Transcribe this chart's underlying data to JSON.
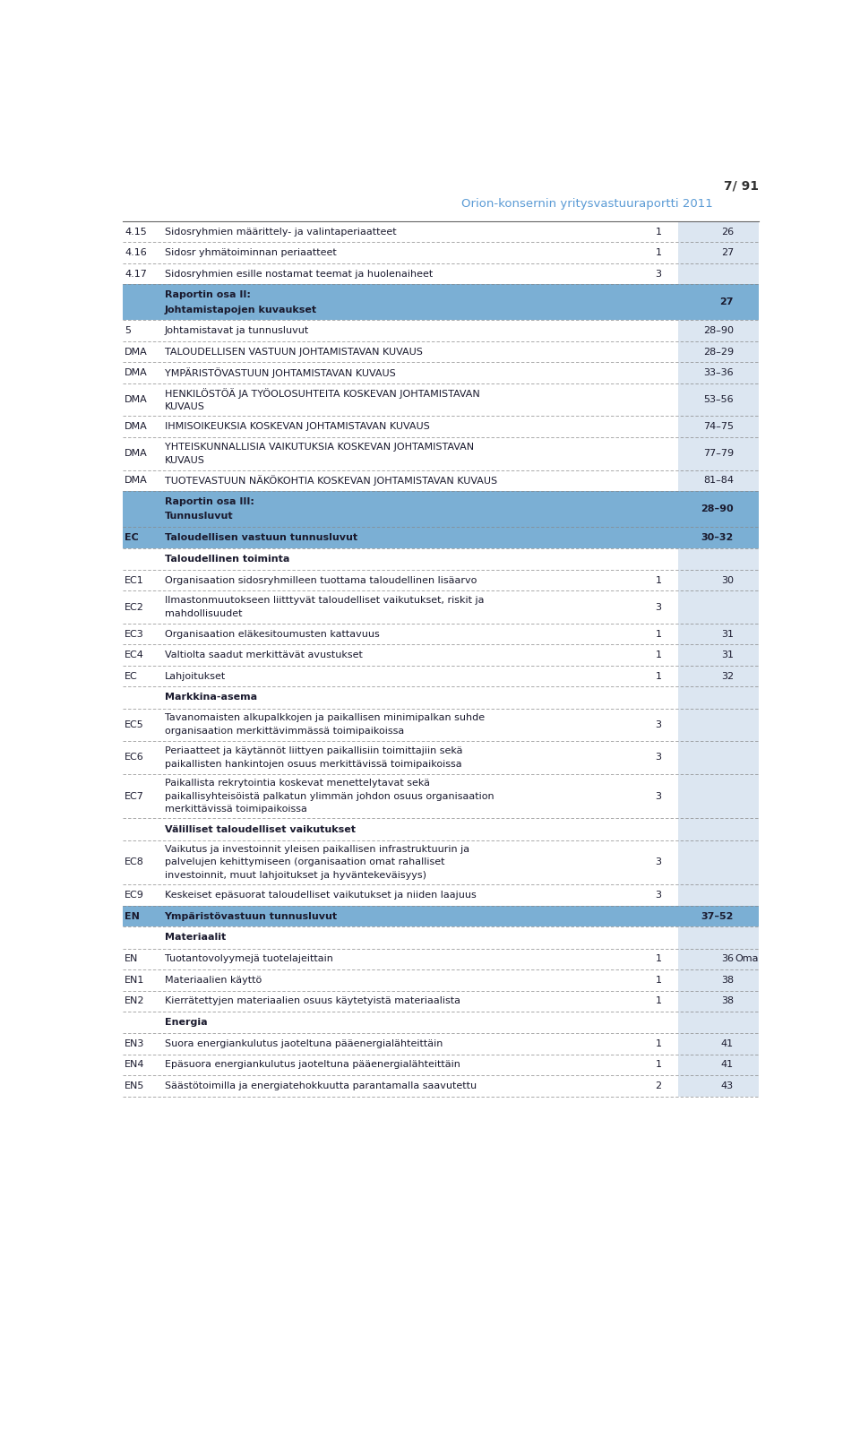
{
  "page_header": "7/ 91",
  "page_subtitle": "Orion-konsernin yritysvastuuraportti 2011",
  "header_color": "#5b9bd5",
  "bg_color": "#ffffff",
  "col_light_bg": "#dce6f1",
  "col_dark_bg": "#7bafd4",
  "rows": [
    {
      "col1": "4.15",
      "col2": "Sidosryhmien määrittely- ja valintaperiaatteet",
      "col3": "1",
      "col4": "26",
      "style": "normal_bluecol4"
    },
    {
      "col1": "4.16",
      "col2": "Sidosr yhmätoiminnan periaatteet",
      "col3": "1",
      "col4": "27",
      "style": "normal_bluecol4"
    },
    {
      "col1": "4.17",
      "col2": "Sidosryhmien esille nostamat teemat ja huolenaiheet",
      "col3": "3",
      "col4": "",
      "style": "normal_bluecol4"
    },
    {
      "col1": "",
      "col2": "Raportin osa II:\nJohtamistapojen kuvaukset",
      "col3": "",
      "col4": "27",
      "style": "section_header"
    },
    {
      "col1": "5",
      "col2": "Johtamistavat ja tunnusluvut",
      "col3": "",
      "col4": "28–90",
      "style": "normal_bluecol4"
    },
    {
      "col1": "DMA",
      "col2": "TALOUDELLISEN VASTUUN JOHTAMISTAVAN KUVAUS",
      "col3": "",
      "col4": "28–29",
      "style": "normal_bluecol4"
    },
    {
      "col1": "DMA",
      "col2": "YMPÄRISTÖVASTUUN JOHTAMISTAVAN KUVAUS",
      "col3": "",
      "col4": "33–36",
      "style": "normal_bluecol4"
    },
    {
      "col1": "DMA",
      "col2": "HENKILÖSTÖÄ JA TYÖOLOSUHTEITA KOSKEVAN JOHTAMISTAVAN\nKUVAUS",
      "col3": "",
      "col4": "53–56",
      "style": "normal_bluecol4",
      "lines": 2
    },
    {
      "col1": "DMA",
      "col2": "IHMISOIKEUKSIA KOSKEVAN JOHTAMISTAVAN KUVAUS",
      "col3": "",
      "col4": "74–75",
      "style": "normal_bluecol4"
    },
    {
      "col1": "DMA",
      "col2": "YHTEISKUNNALLISIA VAIKUTUKSIA KOSKEVAN JOHTAMISTAVAN\nKUVAUS",
      "col3": "",
      "col4": "77–79",
      "style": "normal_bluecol4",
      "lines": 2
    },
    {
      "col1": "DMA",
      "col2": "TUOTEVASTUUN NÄKÖKOHTIA KOSKEVAN JOHTAMISTAVAN KUVAUS",
      "col3": "",
      "col4": "81–84",
      "style": "normal_bluecol4"
    },
    {
      "col1": "",
      "col2": "Raportin osa III:\nTunnusluvut",
      "col3": "",
      "col4": "28–90",
      "style": "section_header"
    },
    {
      "col1": "EC",
      "col2": "Taloudellisen vastuun tunnusluvut",
      "col3": "",
      "col4": "30–32",
      "style": "ec_header"
    },
    {
      "col1": "",
      "col2": "Taloudellinen toiminta",
      "col3": "",
      "col4": "",
      "style": "subheader"
    },
    {
      "col1": "EC1",
      "col2": "Organisaation sidosryhmilleen tuottama taloudellinen lisäarvo",
      "col3": "1",
      "col4": "30",
      "style": "normal"
    },
    {
      "col1": "EC2",
      "col2": "Ilmastonmuutokseen liitttyvät taloudelliset vaikutukset, riskit ja\nmahdollisuudet",
      "col3": "3",
      "col4": "",
      "style": "normal",
      "lines": 2
    },
    {
      "col1": "EC3",
      "col2": "Organisaation eläkesitoumusten kattavuus",
      "col3": "1",
      "col4": "31",
      "style": "normal"
    },
    {
      "col1": "EC4",
      "col2": "Valtiolta saadut merkittävät avustukset",
      "col3": "1",
      "col4": "31",
      "style": "normal"
    },
    {
      "col1": "EC",
      "col2": "Lahjoitukset",
      "col3": "1",
      "col4": "32",
      "style": "normal"
    },
    {
      "col1": "",
      "col2": "Markkina-asema",
      "col3": "",
      "col4": "",
      "style": "subheader"
    },
    {
      "col1": "EC5",
      "col2": "Tavanomaisten alkupalkkojen ja paikallisen minimipalkan suhde\norganisaation merkittävimmässä toimipaikoissa",
      "col3": "3",
      "col4": "",
      "style": "normal",
      "lines": 2
    },
    {
      "col1": "EC6",
      "col2": "Periaatteet ja käytännöt liittyen paikallisiin toimittajiin sekä\npaikallisten hankintojen osuus merkittävissä toimipaikoissa",
      "col3": "3",
      "col4": "",
      "style": "normal",
      "lines": 2
    },
    {
      "col1": "EC7",
      "col2": "Paikallista rekrytointia koskevat menettelytavat sekä\npaikallisyhteisöistä palkatun ylimmän johdon osuus organisaation\nmerkittävissä toimipaikoissa",
      "col3": "3",
      "col4": "",
      "style": "normal",
      "lines": 3
    },
    {
      "col1": "",
      "col2": "Välilliset taloudelliset vaikutukset",
      "col3": "",
      "col4": "",
      "style": "subheader"
    },
    {
      "col1": "EC8",
      "col2": "Vaikutus ja investoinnit yleisen paikallisen infrastruktuurin ja\npalvelujen kehittymiseen (organisaation omat rahalliset\ninvestoinnit, muut lahjoitukset ja hyväntekeväisyys)",
      "col3": "3",
      "col4": "",
      "style": "normal",
      "lines": 3
    },
    {
      "col1": "EC9",
      "col2": "Keskeiset epäsuorat taloudelliset vaikutukset ja niiden laajuus",
      "col3": "3",
      "col4": "",
      "style": "normal"
    },
    {
      "col1": "EN",
      "col2": "Ympäristövastuun tunnusluvut",
      "col3": "",
      "col4": "37–52",
      "style": "en_header"
    },
    {
      "col1": "",
      "col2": "Materiaalit",
      "col3": "",
      "col4": "",
      "style": "subheader"
    },
    {
      "col1": "EN",
      "col2": "Tuotantovolyymejä tuotelajeittain",
      "col3": "1",
      "col4": "36",
      "col5": "Oma",
      "style": "normal"
    },
    {
      "col1": "EN1",
      "col2": "Materiaalien käyttö",
      "col3": "1",
      "col4": "38",
      "style": "normal"
    },
    {
      "col1": "EN2",
      "col2": "Kierrätettyjen materiaalien osuus käytetyistä materiaalista",
      "col3": "1",
      "col4": "38",
      "style": "normal"
    },
    {
      "col1": "",
      "col2": "Energia",
      "col3": "",
      "col4": "",
      "style": "subheader"
    },
    {
      "col1": "EN3",
      "col2": "Suora energiankulutus jaoteltuna pääenergialähteittäin",
      "col3": "1",
      "col4": "41",
      "style": "normal"
    },
    {
      "col1": "EN4",
      "col2": "Epäsuora energiankulutus jaoteltuna pääenergialähteittäin",
      "col3": "1",
      "col4": "41",
      "style": "normal"
    },
    {
      "col1": "EN5",
      "col2": "Säästötoimilla ja energiatehokkuutta parantamalla saavutettu",
      "col3": "2",
      "col4": "43",
      "style": "normal"
    }
  ]
}
